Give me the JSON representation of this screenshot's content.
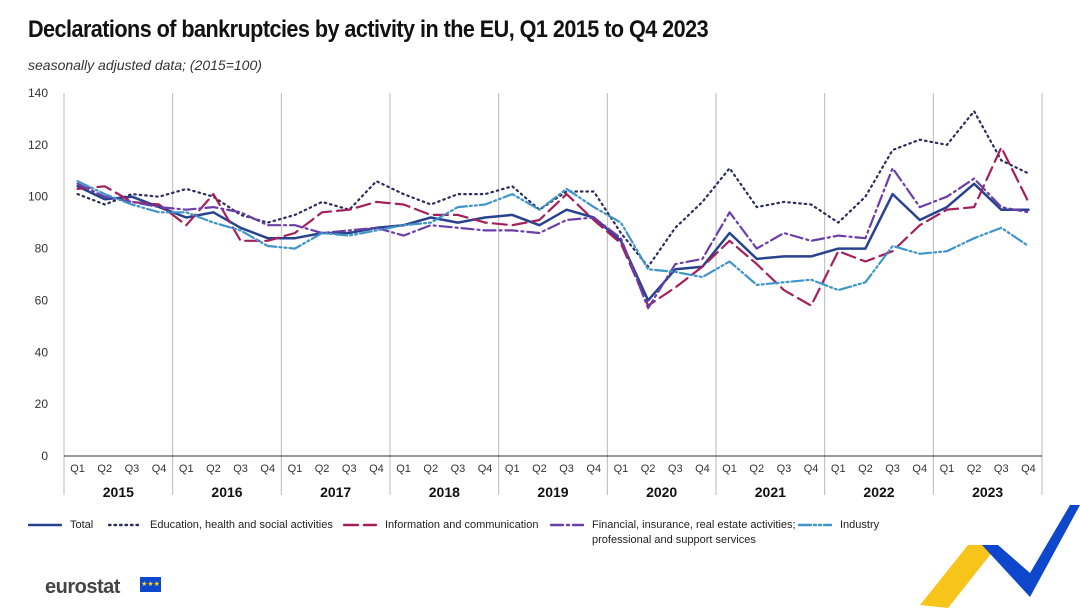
{
  "title": "Declarations of bankruptcies by activity in the EU, Q1 2015 to Q4 2023",
  "subtitle": "seasonally adjusted data; (2015=100)",
  "logo": {
    "text": "eurostat",
    "flag": "eu-flag-icon"
  },
  "chart_data": {
    "type": "line",
    "title": "Declarations of bankruptcies by activity in the EU, Q1 2015 to Q4 2023",
    "subtitle": "seasonally adjusted data; (2015=100)",
    "ylim": [
      0,
      140
    ],
    "yticks": [
      0,
      20,
      40,
      60,
      80,
      100,
      120,
      140
    ],
    "quarters": [
      "Q1",
      "Q2",
      "Q3",
      "Q4"
    ],
    "years": [
      "2015",
      "2016",
      "2017",
      "2018",
      "2019",
      "2020",
      "2021",
      "2022",
      "2023"
    ],
    "grid": "vertical lines between years",
    "legend_position": "bottom",
    "series": [
      {
        "name": "Total",
        "color": "#28428f",
        "dash": "solid",
        "values": [
          104,
          99,
          100,
          96,
          92,
          94,
          88,
          84,
          84,
          86,
          86,
          88,
          89,
          92,
          90,
          92,
          93,
          89,
          95,
          92,
          83,
          60,
          72,
          73,
          86,
          76,
          77,
          77,
          80,
          80,
          101,
          91,
          96,
          105,
          95,
          95
        ]
      },
      {
        "name": "Education,  health and social activities",
        "color": "#2b2e5c",
        "dash": "dotted",
        "values": [
          101,
          97,
          101,
          100,
          103,
          100,
          93,
          90,
          93,
          98,
          95,
          106,
          101,
          97,
          101,
          101,
          104,
          95,
          102,
          102,
          86,
          73,
          88,
          98,
          111,
          96,
          98,
          97,
          90,
          100,
          118,
          122,
          120,
          133,
          114,
          109
        ]
      },
      {
        "name": "Information and communication",
        "color": "#a3205c",
        "dash": "long-dash",
        "values": [
          103,
          104,
          98,
          97,
          89,
          101,
          83,
          83,
          86,
          94,
          95,
          98,
          97,
          93,
          93,
          90,
          89,
          91,
          101,
          91,
          82,
          58,
          65,
          73,
          83,
          74,
          64,
          58,
          79,
          75,
          79,
          89,
          95,
          96,
          119,
          98
        ]
      },
      {
        "name": "Financial, insurance, real estate activities;\nprofessional and support services",
        "color": "#6a3fa8",
        "dash": "dash-dot",
        "values": [
          105,
          100,
          98,
          96,
          95,
          96,
          94,
          89,
          89,
          86,
          87,
          88,
          85,
          89,
          88,
          87,
          87,
          86,
          91,
          92,
          84,
          57,
          74,
          76,
          94,
          80,
          86,
          83,
          85,
          84,
          111,
          96,
          100,
          107,
          96,
          94
        ]
      },
      {
        "name": "Industry",
        "color": "#3f95c9",
        "dash": "dash-dot-dot",
        "values": [
          106,
          101,
          97,
          94,
          94,
          90,
          87,
          81,
          80,
          86,
          85,
          87,
          89,
          90,
          96,
          97,
          101,
          95,
          103,
          96,
          90,
          72,
          71,
          69,
          75,
          66,
          67,
          68,
          64,
          67,
          81,
          78,
          79,
          84,
          88,
          81
        ]
      }
    ]
  }
}
